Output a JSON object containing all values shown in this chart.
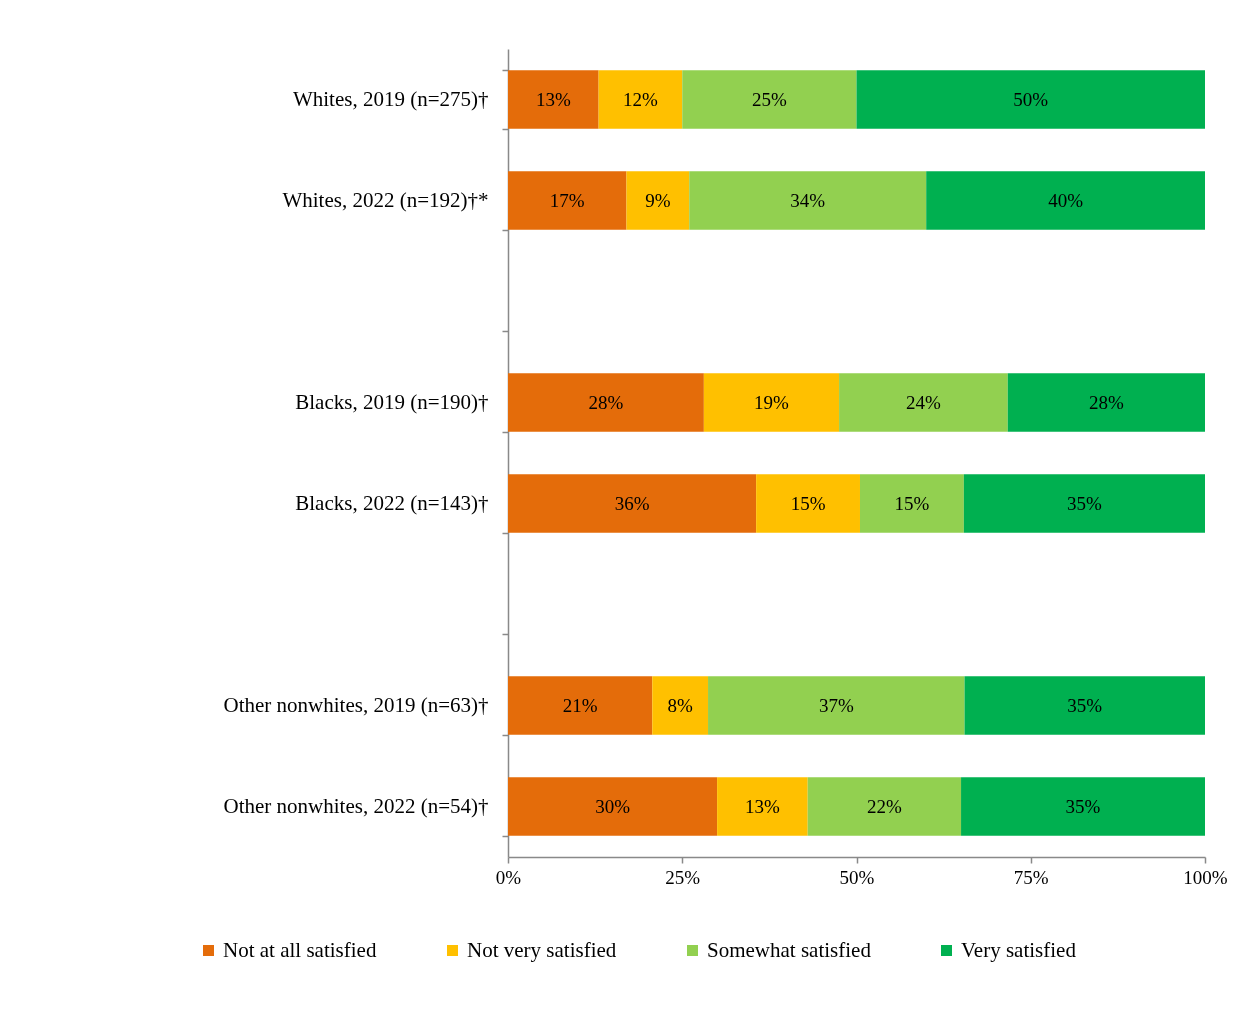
{
  "chart_data": {
    "type": "bar",
    "orientation": "horizontal",
    "stacked": true,
    "categories": [
      "Whites, 2019 (n=275)†",
      "Whites, 2022 (n=192)†*",
      null,
      "Blacks, 2019 (n=190)†",
      "Blacks, 2022 (n=143)†",
      null,
      "Other nonwhites, 2019 (n=63)†",
      "Other nonwhites, 2022 (n=54)†"
    ],
    "series": [
      {
        "name": "Not at all satisfied",
        "color": "#e46c0a",
        "values": [
          13,
          17,
          null,
          28.1,
          35.6,
          null,
          20.7,
          30
        ],
        "value_labels": [
          "13%",
          "17%",
          null,
          "28%",
          "36%",
          null,
          "21%",
          "30%"
        ]
      },
      {
        "name": "Not very satisfied",
        "color": "#ffc000",
        "values": [
          12,
          9,
          null,
          19.4,
          14.9,
          null,
          8,
          13
        ],
        "value_labels": [
          "12%",
          "9%",
          null,
          "19%",
          "15%",
          null,
          "8%",
          "13%"
        ]
      },
      {
        "name": "Somewhat satisfied",
        "color": "#92d050",
        "values": [
          25,
          34,
          null,
          24.2,
          14.9,
          null,
          36.8,
          22
        ],
        "value_labels": [
          "25%",
          "34%",
          null,
          "24%",
          "15%",
          null,
          "37%",
          "22%"
        ]
      },
      {
        "name": "Very satisfied",
        "color": "#00b050",
        "values": [
          50,
          40,
          null,
          28.3,
          34.6,
          null,
          34.5,
          35
        ],
        "value_labels": [
          "50%",
          "40%",
          null,
          "28%",
          "35%",
          null,
          "35%",
          "35%"
        ]
      }
    ],
    "xlim": [
      0,
      100
    ],
    "xticks": [
      {
        "value": 0,
        "label": "0%"
      },
      {
        "value": 25,
        "label": "25%"
      },
      {
        "value": 50,
        "label": "50%"
      },
      {
        "value": 75,
        "label": "75%"
      },
      {
        "value": 100,
        "label": "100%"
      }
    ],
    "grid": false,
    "legend": "bottom"
  }
}
